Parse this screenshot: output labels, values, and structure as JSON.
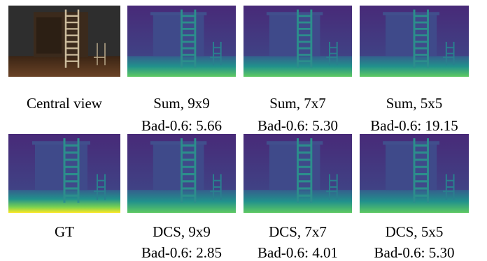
{
  "panels": [
    {
      "lines": [
        "Central view"
      ]
    },
    {
      "lines": [
        "Sum, 9x9",
        "Bad-0.6: 5.66"
      ]
    },
    {
      "lines": [
        "Sum, 7x7",
        "Bad-0.6: 5.30"
      ]
    },
    {
      "lines": [
        "Sum, 5x5",
        "Bad-0.6: 19.15"
      ]
    },
    {
      "lines": [
        "GT"
      ]
    },
    {
      "lines": [
        "DCS, 9x9",
        "Bad-0.6: 2.85"
      ]
    },
    {
      "lines": [
        "DCS, 7x7",
        "Bad-0.6: 4.01"
      ]
    },
    {
      "lines": [
        "DCS, 5x5",
        "Bad-0.6: 5.30"
      ]
    }
  ]
}
